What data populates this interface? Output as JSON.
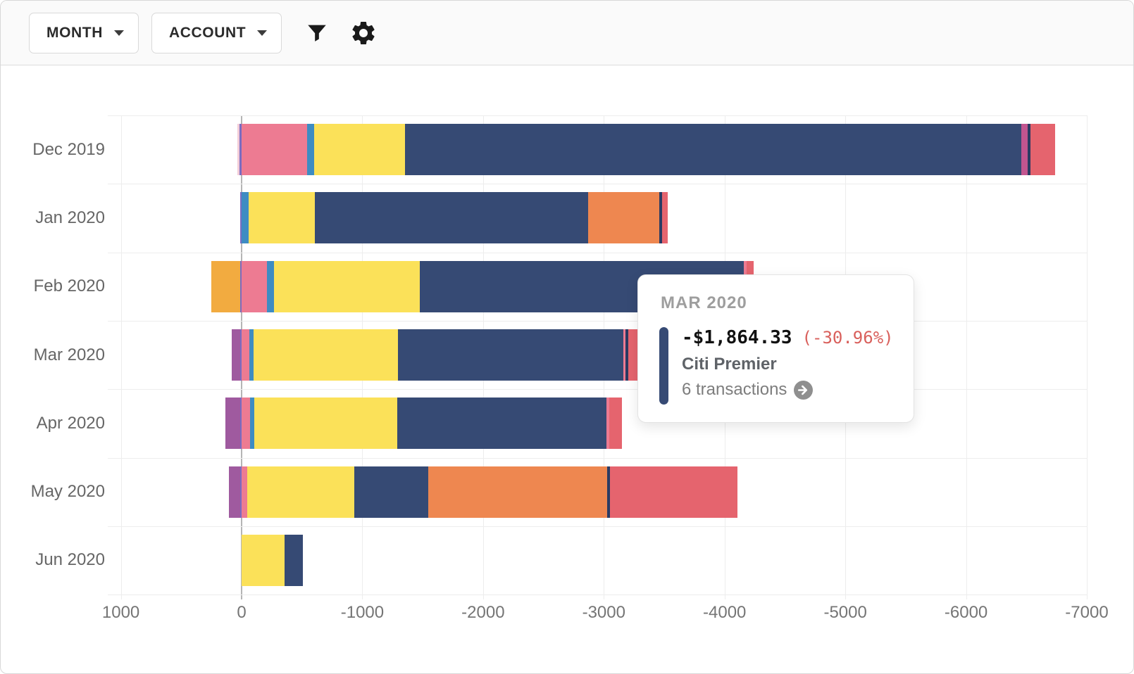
{
  "toolbar": {
    "month_label": "MONTH",
    "account_label": "ACCOUNT",
    "icons": {
      "filter": "filter-icon",
      "settings": "gear-icon"
    }
  },
  "tooltip": {
    "title": "MAR 2020",
    "amount": "-$1,864.33",
    "percent": "(-30.96%)",
    "account": "Citi Premier",
    "transactions": "6 transactions",
    "accent_color": "#364a74",
    "percent_color": "#d9605c"
  },
  "palette": {
    "rose": "#ed7b92",
    "pale_pink": "#f3cdd8",
    "violet": "#7a6cc1",
    "blue": "#3e8cc2",
    "yellow": "#fbe159",
    "navy": "#364a74",
    "navy_dark": "#2b3b63",
    "orange": "#ee8750",
    "red": "#e5646e",
    "magenta": "#c2558f",
    "gold": "#f2ab40",
    "purple": "#9f5a9f"
  },
  "chart_data": {
    "type": "bar",
    "stacked": true,
    "orientation": "horizontal",
    "value_unit": "USD (negative = spending)",
    "xlim": [
      1000,
      -7000
    ],
    "grid": true,
    "axis_ticks": [
      1000,
      0,
      -1000,
      -2000,
      -3000,
      -4000,
      -5000,
      -6000,
      -7000
    ],
    "axis_tick_labels": [
      "1000",
      "0",
      "-1000",
      "-2000",
      "-3000",
      "-4000",
      "-5000",
      "-6000",
      "-7000"
    ],
    "highlighted_segment": {
      "row": "Mar 2020",
      "color": "navy",
      "account": "Citi Premier",
      "value": -1864.33
    },
    "rows": [
      {
        "label": "Dec 2019",
        "positive": [
          {
            "color": "violet",
            "value": 15
          },
          {
            "color": "pale_pink",
            "value": 20
          }
        ],
        "negative": [
          {
            "color": "rose",
            "value": 545
          },
          {
            "color": "blue",
            "value": 58
          },
          {
            "color": "yellow",
            "value": 748
          },
          {
            "color": "navy",
            "value": 5106
          },
          {
            "color": "magenta",
            "value": 53
          },
          {
            "color": "navy_dark",
            "value": 23
          },
          {
            "color": "red",
            "value": 205
          }
        ]
      },
      {
        "label": "Jan 2020",
        "positive": [
          {
            "color": "violet",
            "value": 12
          }
        ],
        "negative": [
          {
            "color": "blue",
            "value": 58
          },
          {
            "color": "yellow",
            "value": 550
          },
          {
            "color": "navy",
            "value": 2262
          },
          {
            "color": "orange",
            "value": 590
          },
          {
            "color": "navy_dark",
            "value": 23
          },
          {
            "color": "red",
            "value": 47
          }
        ]
      },
      {
        "label": "Feb 2020",
        "positive": [
          {
            "color": "violet",
            "value": 12
          },
          {
            "color": "gold",
            "value": 240
          }
        ],
        "negative": [
          {
            "color": "rose",
            "value": 210
          },
          {
            "color": "blue",
            "value": 58
          },
          {
            "color": "yellow",
            "value": 1210
          },
          {
            "color": "navy",
            "value": 2680
          },
          {
            "color": "rose",
            "value": 23
          },
          {
            "color": "red",
            "value": 58
          }
        ]
      },
      {
        "label": "Mar 2020",
        "positive": [
          {
            "color": "violet",
            "value": 12
          },
          {
            "color": "purple",
            "value": 70
          }
        ],
        "negative": [
          {
            "color": "rose",
            "value": 64
          },
          {
            "color": "blue",
            "value": 35
          },
          {
            "color": "yellow",
            "value": 1198
          },
          {
            "color": "navy",
            "value": 1864.33
          },
          {
            "color": "rose",
            "value": 18
          },
          {
            "color": "navy_dark",
            "value": 23
          },
          {
            "color": "red",
            "value": 76
          }
        ]
      },
      {
        "label": "Apr 2020",
        "positive": [
          {
            "color": "violet",
            "value": 12
          },
          {
            "color": "purple",
            "value": 122
          }
        ],
        "negative": [
          {
            "color": "rose",
            "value": 70
          },
          {
            "color": "blue",
            "value": 35
          },
          {
            "color": "yellow",
            "value": 1186
          },
          {
            "color": "navy",
            "value": 1730
          },
          {
            "color": "rose",
            "value": 23
          },
          {
            "color": "red",
            "value": 105
          }
        ]
      },
      {
        "label": "May 2020",
        "positive": [
          {
            "color": "violet",
            "value": 10
          },
          {
            "color": "purple",
            "value": 95
          }
        ],
        "negative": [
          {
            "color": "rose",
            "value": 47
          },
          {
            "color": "yellow",
            "value": 888
          },
          {
            "color": "navy",
            "value": 613
          },
          {
            "color": "orange",
            "value": 1478
          },
          {
            "color": "navy_dark",
            "value": 23
          },
          {
            "color": "red",
            "value": 1058
          }
        ]
      },
      {
        "label": "Jun 2020",
        "positive": [],
        "negative": [
          {
            "color": "yellow",
            "value": 356
          },
          {
            "color": "navy",
            "value": 152
          }
        ]
      }
    ]
  }
}
